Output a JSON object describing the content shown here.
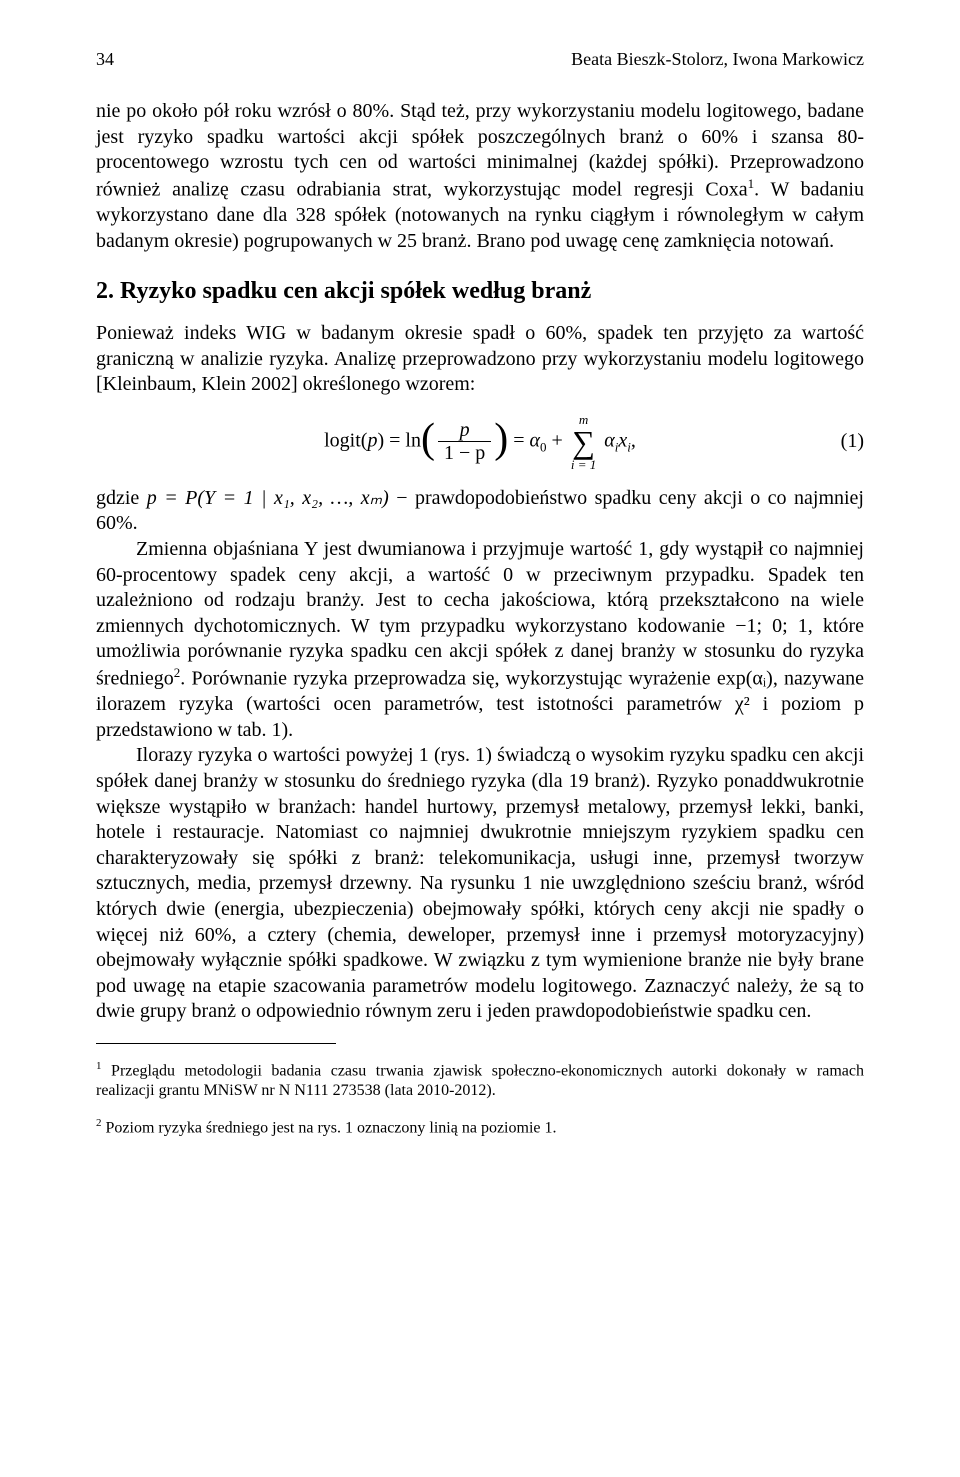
{
  "colors": {
    "text": "#000000",
    "background": "#ffffff",
    "rule": "#000000"
  },
  "typography": {
    "body_font": "Times New Roman",
    "body_size_pt": 11,
    "heading_size_pt": 13.5,
    "heading_weight": "bold",
    "footnote_size_pt": 9,
    "line_height": 1.28
  },
  "header": {
    "page_number": "34",
    "authors": "Beata Bieszk-Stolorz, Iwona Markowicz"
  },
  "body": {
    "p1": "nie po około pół roku wzrósł o 80%. Stąd też, przy wykorzystaniu modelu logitowego, badane jest ryzyko spadku wartości akcji spółek poszczególnych branż o 60% i szansa 80-procentowego wzrostu tych cen od wartości minimalnej (każdej spółki). Przeprowadzono również analizę czasu odrabiania strat, wykorzystując model regresji Coxa",
    "p1_fn": "1",
    "p1_rest": ". W badaniu wykorzystano dane dla 328 spółek (notowanych na rynku ciągłym i równoległym w całym badanym okresie) pogrupowanych w 25 branż. Brano pod uwagę cenę zamknięcia notowań.",
    "section": "2. Ryzyko spadku cen akcji spółek według branż",
    "p2": "Ponieważ indeks WIG w badanym okresie spadł o 60%, spadek ten przyjęto za wartość graniczną w analizie ryzyka. Analizę przeprowadzono przy wykorzystaniu modelu logitowego [Kleinbaum, Klein 2002] określonego wzorem:",
    "eq": {
      "lhs_label": "logit",
      "lhs_arg": "p",
      "ln_label": "ln",
      "frac_num": "p",
      "frac_den": "1 − p",
      "alpha0": "α",
      "alpha0_sub": "0",
      "sum_above": "m",
      "sum_below": "i = 1",
      "alpha_i": "α",
      "alpha_i_sub": "i",
      "x_i": "x",
      "x_i_sub": "i",
      "trail": ",",
      "number": "(1)"
    },
    "p3_prefix": "gdzie ",
    "p3_formula": "p = P(Y = 1 | x₁, x₂, …, xₘ)",
    "p3_rest": " − prawdopodobieństwo spadku ceny akcji o co najmniej 60%.",
    "p4": "Zmienna objaśniana Y jest dwumianowa i przyjmuje wartość 1, gdy wystąpił co najmniej 60-procentowy spadek ceny akcji, a wartość 0 w przeciwnym przypadku. Spadek ten uzależniono od rodzaju branży. Jest to cecha jakościowa, którą przekształcono na wiele zmiennych dychotomicznych. W tym przypadku wykorzystano kodowanie −1; 0; 1, które umożliwia porównanie ryzyka spadku cen akcji spółek z danej branży w stosunku do ryzyka średniego",
    "p4_fn": "2",
    "p4_rest": ". Porównanie ryzyka przeprowadza się, wykorzystując wyrażenie exp(αᵢ), nazywane ilorazem ryzyka (wartości ocen parametrów, test istotności parametrów χ² i poziom p przedstawiono w tab. 1).",
    "p5": "Ilorazy ryzyka o wartości powyżej 1 (rys. 1) świadczą o wysokim ryzyku spadku cen akcji spółek danej branży w stosunku do średniego ryzyka (dla 19 branż). Ryzyko ponaddwukrotnie większe wystąpiło w branżach: handel hurtowy, przemysł metalowy, przemysł lekki, banki, hotele i restauracje. Natomiast co najmniej dwukrotnie mniejszym ryzykiem spadku cen charakteryzowały się spółki z branż: telekomunikacja, usługi inne, przemysł tworzyw sztucznych, media, przemysł drzewny. Na rysunku 1 nie uwzględniono sześciu branż, wśród których dwie (energia, ubezpieczenia) obejmowały spółki, których ceny akcji nie spadły o więcej niż 60%, a cztery (chemia, deweloper, przemysł inne i przemysł motoryzacyjny) obejmowały wyłącznie spółki spadkowe. W związku z tym wymienione branże nie były brane pod uwagę na etapie szacowania parametrów modelu logitowego. Zaznaczyć należy, że są to dwie grupy branż o odpowiednio równym zeru i jeden prawdopodobieństwie spadku cen."
  },
  "footnotes": {
    "f1_mark": "1",
    "f1": " Przeglądu metodologii badania czasu trwania zjawisk społeczno-ekonomicznych autorki dokonały w ramach realizacji grantu MNiSW nr N N111 273538 (lata 2010-2012).",
    "f2_mark": "2",
    "f2": " Poziom ryzyka średniego jest na rys. 1 oznaczony linią na poziomie 1."
  }
}
